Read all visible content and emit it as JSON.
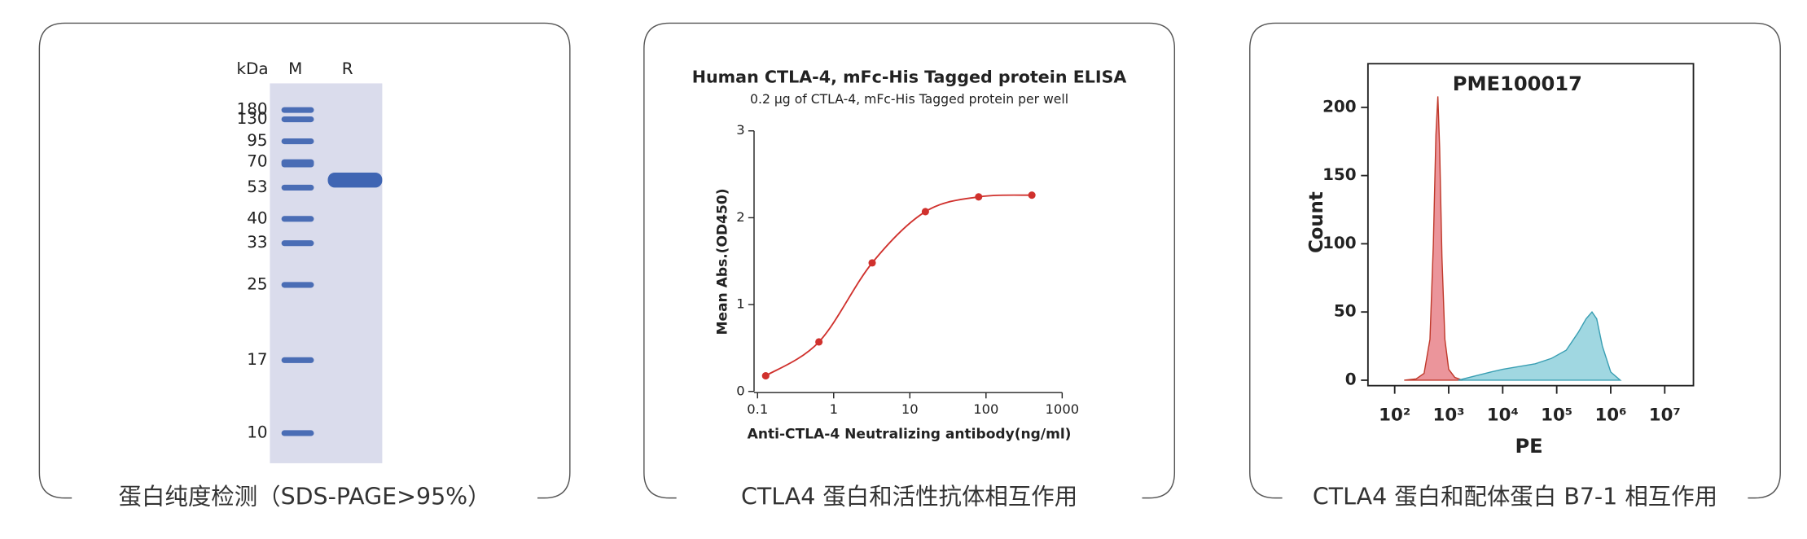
{
  "panels": [
    {
      "caption": "蛋白纯度检测（SDS-PAGE>95%）",
      "gel": {
        "lane_header": [
          "kDa",
          "M",
          "R"
        ],
        "markers": [
          180,
          130,
          95,
          70,
          53,
          40,
          33,
          25,
          17,
          10
        ]
      }
    },
    {
      "caption": "CTLA4 蛋白和活性抗体相互作用"
    },
    {
      "caption": "CTLA4 蛋白和配体蛋白 B7-1 相互作用"
    }
  ],
  "chart_data": [
    {
      "type": "line",
      "title": "Human CTLA-4, mFc-His Tagged protein ELISA",
      "subtitle": "0.2 μg of CTLA-4, mFc-His Tagged protein per well",
      "x_label": "Anti-CTLA-4 Neutralizing antibody(ng/ml)",
      "y_label": "Mean Abs.(OD450)",
      "x": [
        0.128,
        0.64,
        3.2,
        16,
        80,
        400
      ],
      "series": [
        {
          "color": "#d0312d",
          "values": [
            0.18,
            0.57,
            1.48,
            2.07,
            2.24,
            2.26
          ]
        }
      ],
      "xscale": "log",
      "xlim": [
        0.1,
        1000
      ],
      "xticks": [
        0.1,
        1,
        10,
        100,
        1000
      ],
      "ylim": [
        0,
        3
      ],
      "yticks": [
        0,
        1,
        2,
        3
      ]
    },
    {
      "type": "area",
      "title": "PME100017",
      "x_label": "PE",
      "y_label": "Count",
      "xscale": "log",
      "xlim": [
        32,
        34000000
      ],
      "xticks": [
        {
          "value": 100,
          "label": "10²"
        },
        {
          "value": 1000,
          "label": "10³"
        },
        {
          "value": 10000,
          "label": "10⁴"
        },
        {
          "value": 100000,
          "label": "10⁵"
        },
        {
          "value": 1000000,
          "label": "10⁶"
        },
        {
          "value": 10000000,
          "label": "10⁷"
        }
      ],
      "ylim": [
        -4,
        232
      ],
      "yticks": [
        0,
        50,
        100,
        150,
        200
      ],
      "series": [
        {
          "color": "#e8838a",
          "x": [
            150,
            250,
            350,
            450,
            520,
            580,
            630,
            680,
            750,
            850,
            1000,
            1300,
            1800
          ],
          "values": [
            0,
            1,
            5,
            30,
            100,
            180,
            208,
            170,
            90,
            30,
            8,
            2,
            0
          ]
        },
        {
          "color": "#8fd0dc",
          "x": [
            1500,
            3000,
            6000,
            10000,
            20000,
            40000,
            80000,
            150000,
            250000,
            350000,
            450000,
            550000,
            700000,
            1000000,
            1500000
          ],
          "values": [
            0,
            3,
            6,
            8,
            10,
            12,
            16,
            22,
            35,
            45,
            50,
            45,
            25,
            6,
            0
          ]
        }
      ]
    }
  ]
}
